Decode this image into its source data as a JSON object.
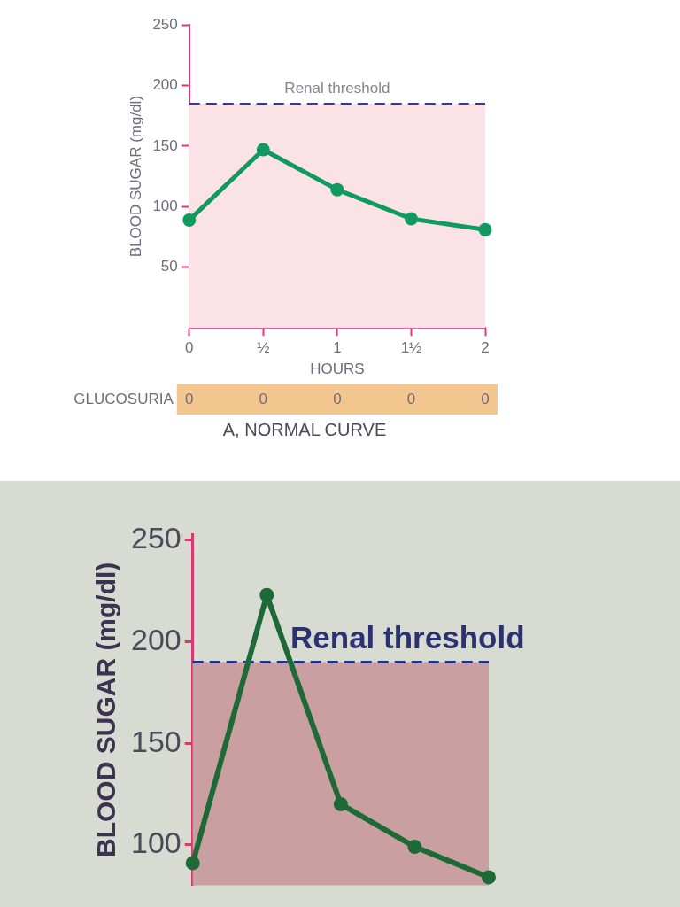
{
  "chart_data": [
    {
      "type": "line",
      "title": "A, NORMAL CURVE",
      "xlabel": "HOURS",
      "ylabel": "BLOOD SUGAR (mg/dl)",
      "x": [
        0,
        0.5,
        1,
        1.5,
        2
      ],
      "series": [
        {
          "color": "#119a5f",
          "values": [
            89,
            147,
            114,
            90,
            81
          ]
        }
      ],
      "xlim": [
        0,
        2
      ],
      "xticks": [
        0,
        {
          "value": 0.5,
          "label": "½"
        },
        1,
        {
          "value": 1.5,
          "label": "1½"
        },
        2
      ],
      "ylim": [
        0,
        250
      ],
      "yticks": [
        50,
        100,
        150,
        200,
        250
      ],
      "marker": "circle",
      "ref_lines": [
        {
          "axis": "y",
          "value": 185,
          "label": "Renal threshold",
          "color": "#2d3a9c",
          "line_style": "dashed"
        }
      ],
      "bands": [
        {
          "axis": "y",
          "from": 0,
          "to": 185,
          "color": "#fbe2e7"
        }
      ],
      "annotations": [
        "GLUCOSURIA",
        "0",
        "0",
        "0",
        "0",
        "0"
      ]
    },
    {
      "type": "line",
      "ylabel": "BLOOD SUGAR (mg/dl)",
      "categories": [
        null,
        null,
        null,
        null,
        null
      ],
      "series": [
        {
          "color": "#1e6a36",
          "values": [
            91,
            223,
            120,
            99,
            84
          ]
        }
      ],
      "ylim": [
        80,
        253
      ],
      "yticks": [
        100,
        150,
        200,
        250
      ],
      "tick_labels": "y",
      "marker": "circle",
      "ref_lines": [
        {
          "axis": "y",
          "value": 190,
          "label": "Renal threshold",
          "color": "#26307a",
          "line_style": "dashed"
        }
      ],
      "bands": [
        {
          "axis": "y",
          "from": 80,
          "to": 190,
          "color": "#c99fa2"
        }
      ]
    }
  ]
}
